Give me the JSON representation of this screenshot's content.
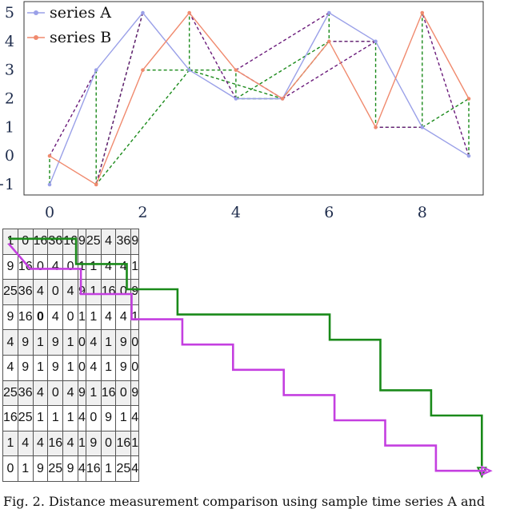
{
  "chart_data": {
    "type": "line",
    "x": [
      0,
      1,
      2,
      3,
      4,
      5,
      6,
      7,
      8,
      9
    ],
    "xticks": [
      "0",
      "2",
      "4",
      "6",
      "8"
    ],
    "yticks": [
      "−1",
      "0",
      "1",
      "2",
      "3",
      "4",
      "5"
    ],
    "ylim": [
      -1,
      5
    ],
    "xlim": [
      -0.3,
      9.3
    ],
    "series": [
      {
        "name": "series A",
        "color": "#9aa0e8",
        "values": [
          -1,
          3,
          5,
          3,
          2,
          2,
          5,
          4,
          1,
          0
        ]
      },
      {
        "name": "series B",
        "color": "#f08a6e",
        "values": [
          0,
          -1,
          3,
          5,
          3,
          2,
          4,
          1,
          5,
          2
        ]
      }
    ],
    "legend_position": "top-left",
    "alignment_links_green": [
      [
        0,
        0
      ],
      [
        1,
        1
      ],
      [
        2,
        1
      ],
      [
        3,
        1
      ],
      [
        3,
        2
      ],
      [
        3,
        3
      ],
      [
        3,
        4
      ],
      [
        3,
        5
      ],
      [
        4,
        4
      ],
      [
        4,
        5
      ],
      [
        4,
        6
      ],
      [
        5,
        6
      ],
      [
        6,
        6
      ],
      [
        7,
        6
      ],
      [
        7,
        7
      ],
      [
        8,
        7
      ],
      [
        8,
        8
      ],
      [
        8,
        9
      ],
      [
        9,
        9
      ]
    ],
    "alignment_links_purple": [
      [
        0,
        0
      ],
      [
        1,
        0
      ],
      [
        1,
        1
      ],
      [
        2,
        1
      ],
      [
        2,
        2
      ],
      [
        3,
        3
      ],
      [
        4,
        3
      ],
      [
        4,
        4
      ],
      [
        5,
        4
      ],
      [
        6,
        4
      ],
      [
        7,
        5
      ],
      [
        7,
        6
      ],
      [
        8,
        7
      ],
      [
        8,
        8
      ],
      [
        9,
        8
      ],
      [
        9,
        9
      ]
    ]
  },
  "matrix": [
    [
      "1",
      "0",
      "16",
      "36",
      "16",
      "9",
      "25",
      "4",
      "36",
      "9"
    ],
    [
      "9",
      "16",
      "0",
      "4",
      "0",
      "1",
      "1",
      "4",
      "4",
      "1"
    ],
    [
      "25",
      "36",
      "4",
      "0",
      "4",
      "9",
      "1",
      "16",
      "0",
      "9"
    ],
    [
      "9",
      "16",
      "0",
      "4",
      "0",
      "1",
      "1",
      "4",
      "4",
      "1"
    ],
    [
      "4",
      "9",
      "1",
      "9",
      "1",
      "0",
      "4",
      "1",
      "9",
      "0"
    ],
    [
      "4",
      "9",
      "1",
      "9",
      "1",
      "0",
      "4",
      "1",
      "9",
      "0"
    ],
    [
      "25",
      "36",
      "4",
      "0",
      "4",
      "9",
      "1",
      "16",
      "0",
      "9"
    ],
    [
      "16",
      "25",
      "1",
      "1",
      "1",
      "4",
      "0",
      "9",
      "1",
      "4"
    ],
    [
      "1",
      "4",
      "4",
      "16",
      "4",
      "1",
      "9",
      "0",
      "16",
      "1"
    ],
    [
      "0",
      "1",
      "9",
      "25",
      "9",
      "4",
      "16",
      "1",
      "25",
      "4"
    ]
  ],
  "matrix_bold_cell": [
    3,
    2
  ],
  "path_green": [
    [
      0,
      0
    ],
    [
      0,
      1
    ],
    [
      1,
      1
    ],
    [
      1,
      2
    ],
    [
      2,
      2
    ],
    [
      2,
      3
    ],
    [
      3,
      3
    ],
    [
      3,
      4
    ],
    [
      3,
      5
    ],
    [
      3,
      6
    ],
    [
      4,
      6
    ],
    [
      4,
      7
    ],
    [
      5,
      7
    ],
    [
      6,
      7
    ],
    [
      6,
      8
    ],
    [
      7,
      8
    ],
    [
      7,
      9
    ],
    [
      8,
      9
    ],
    [
      9,
      9
    ]
  ],
  "path_purple": [
    [
      0,
      0
    ],
    [
      1,
      0
    ],
    [
      1,
      1
    ],
    [
      2,
      1
    ],
    [
      2,
      2
    ],
    [
      3,
      2
    ],
    [
      3,
      3
    ],
    [
      4,
      3
    ],
    [
      4,
      4
    ],
    [
      5,
      4
    ],
    [
      5,
      5
    ],
    [
      6,
      5
    ],
    [
      6,
      6
    ],
    [
      7,
      6
    ],
    [
      7,
      7
    ],
    [
      8,
      7
    ],
    [
      8,
      8
    ],
    [
      9,
      8
    ],
    [
      9,
      9
    ]
  ],
  "colors": {
    "green": "#1a8a1a",
    "purple": "#c43fe0",
    "alignment_purple": "#6a1a7a"
  },
  "caption": "Fig. 2.  Distance measurement comparison using sample time series A and"
}
